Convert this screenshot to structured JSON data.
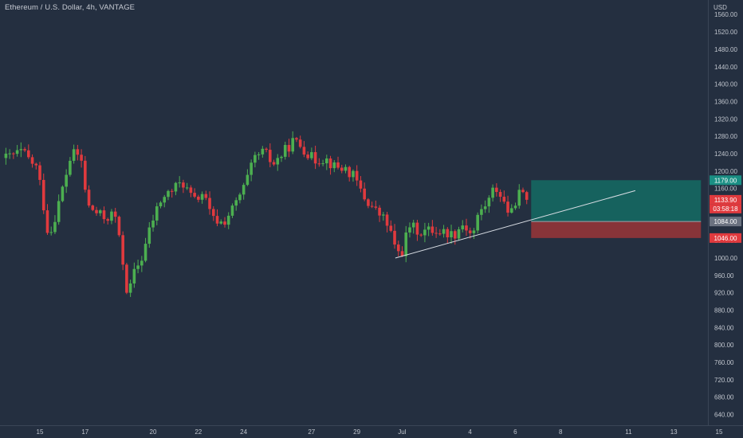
{
  "title": "Ethereum / U.S. Dollar, 4h, VANTAGE",
  "chart_data": {
    "type": "candlestick",
    "currency": "USD",
    "ylim": [
      620,
      1580
    ],
    "y_ticks": [
      "1560.00",
      "1520.00",
      "1480.00",
      "1440.00",
      "1400.00",
      "1360.00",
      "1320.00",
      "1280.00",
      "1240.00",
      "1200.00",
      "1160.00",
      "1120.00",
      "1080.00",
      "1040.00",
      "1000.00",
      "960.00",
      "920.00",
      "880.00",
      "840.00",
      "800.00",
      "760.00",
      "720.00",
      "680.00",
      "640.00"
    ],
    "x_ticks": [
      "15",
      "17",
      "20",
      "22",
      "24",
      "27",
      "29",
      "Jul",
      "4",
      "6",
      "8",
      "11",
      "13",
      "15"
    ],
    "x_tick_days": [
      15,
      17,
      20,
      22,
      24,
      27,
      29,
      31,
      34,
      36,
      38,
      41,
      43,
      45
    ],
    "day_ref": "June 2022; Jul = day 31",
    "candle_interval_days": 0.1667,
    "candles_start_day": 13.5,
    "candles_end_day": 36.6,
    "price_path": [
      [
        13.5,
        1230
      ],
      [
        14.2,
        1245
      ],
      [
        14.9,
        1205
      ],
      [
        15.4,
        1045
      ],
      [
        15.8,
        1120
      ],
      [
        16.4,
        1240
      ],
      [
        16.8,
        1235
      ],
      [
        17.1,
        1120
      ],
      [
        17.6,
        1100
      ],
      [
        17.9,
        1090
      ],
      [
        18.3,
        1105
      ],
      [
        18.7,
        980
      ],
      [
        18.9,
        905
      ],
      [
        19.1,
        960
      ],
      [
        19.5,
        1000
      ],
      [
        19.9,
        1075
      ],
      [
        20.3,
        1130
      ],
      [
        20.8,
        1155
      ],
      [
        21.3,
        1175
      ],
      [
        21.8,
        1130
      ],
      [
        22.2,
        1150
      ],
      [
        22.6,
        1090
      ],
      [
        23.1,
        1080
      ],
      [
        23.6,
        1120
      ],
      [
        24.0,
        1160
      ],
      [
        24.5,
        1230
      ],
      [
        24.9,
        1245
      ],
      [
        25.3,
        1215
      ],
      [
        25.8,
        1245
      ],
      [
        26.2,
        1270
      ],
      [
        26.6,
        1255
      ],
      [
        27.1,
        1225
      ],
      [
        27.6,
        1230
      ],
      [
        28.0,
        1210
      ],
      [
        28.5,
        1205
      ],
      [
        28.9,
        1185
      ],
      [
        29.3,
        1140
      ],
      [
        29.8,
        1110
      ],
      [
        30.2,
        1090
      ],
      [
        30.5,
        1060
      ],
      [
        30.7,
        1015
      ],
      [
        31.0,
        1015
      ],
      [
        31.3,
        1075
      ],
      [
        31.8,
        1060
      ],
      [
        32.3,
        1065
      ],
      [
        32.8,
        1060
      ],
      [
        33.3,
        1055
      ],
      [
        33.7,
        1080
      ],
      [
        34.1,
        1050
      ],
      [
        34.4,
        1105
      ],
      [
        34.8,
        1130
      ],
      [
        35.1,
        1165
      ],
      [
        35.4,
        1140
      ],
      [
        35.8,
        1095
      ],
      [
        36.1,
        1150
      ],
      [
        36.4,
        1140
      ],
      [
        36.6,
        1133.9
      ]
    ],
    "price_labels": [
      {
        "value": 1179.0,
        "text": "1179.00",
        "color": "#1a8f84"
      },
      {
        "value": 1133.9,
        "text": "1133.90",
        "color": "#e03a3e"
      },
      {
        "value": 1084.0,
        "text": "1084.00",
        "color": "#6b7280"
      },
      {
        "value": 1046.0,
        "text": "1046.00",
        "color": "#e03a3e"
      }
    ],
    "countdown": "03:58:18",
    "position": {
      "from_day": 36.7,
      "to_day": 44.2,
      "entry": 1084.0,
      "target": 1179.0,
      "stop": 1046.0,
      "profit_color": "#16625e",
      "loss_color": "#883439"
    },
    "trendline": {
      "x": [
        30.7,
        41.3
      ],
      "y": [
        1000,
        1155
      ],
      "color": "#d8dde4"
    },
    "colors": {
      "up": "#4caf50",
      "down": "#e03a3e",
      "background": "#242f40",
      "axis_text": "#c0c5cd"
    }
  }
}
